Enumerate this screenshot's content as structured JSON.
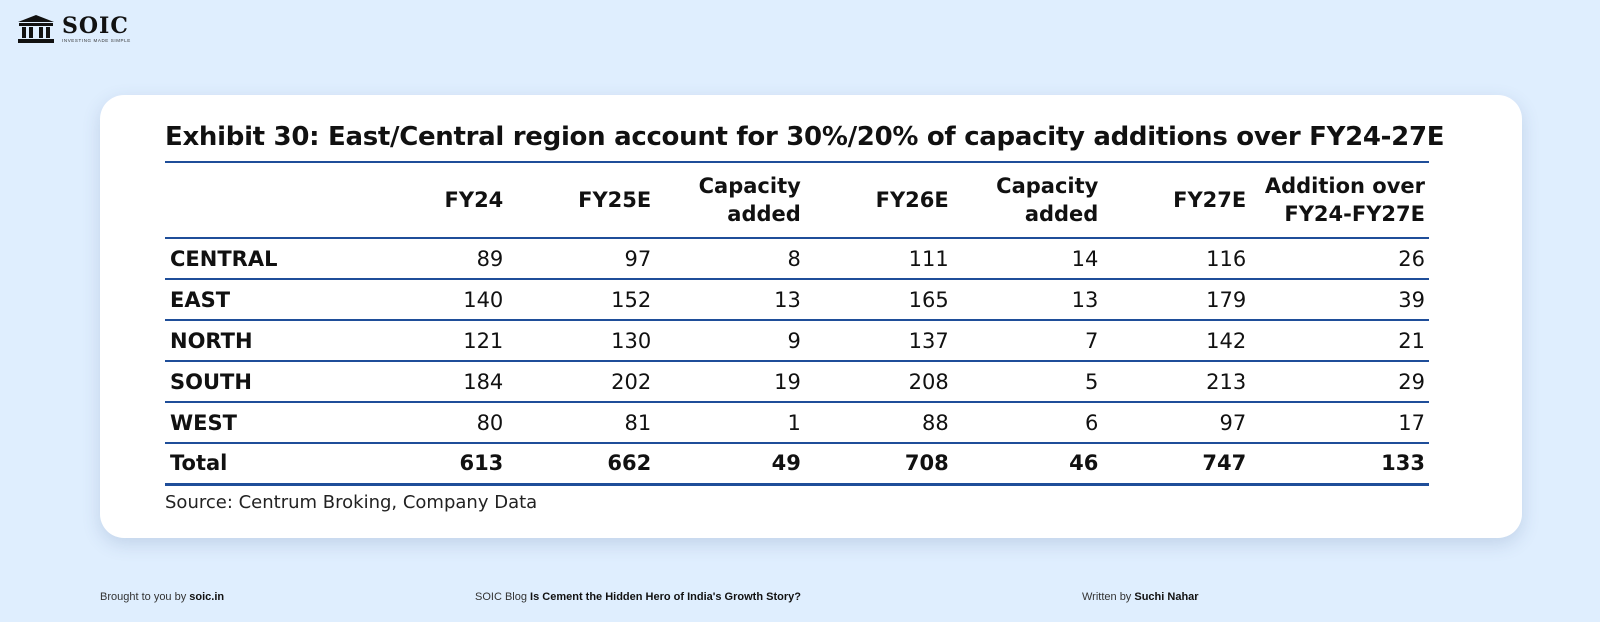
{
  "brand": {
    "name": "SOIC",
    "tagline": "INVESTING MADE SIMPLE"
  },
  "exhibit": {
    "title": "Exhibit 30: East/Central region account for 30%/20%  of capacity additions over FY24-27E",
    "headers": [
      "",
      "FY24",
      "FY25E",
      "Capacity\nadded",
      "FY26E",
      "Capacity\nadded",
      "FY27E",
      "Addition over\nFY24-FY27E"
    ],
    "rows": [
      {
        "region": "CENTRAL",
        "values": [
          "89",
          "97",
          "8",
          "111",
          "14",
          "116",
          "26"
        ]
      },
      {
        "region": "EAST",
        "values": [
          "140",
          "152",
          "13",
          "165",
          "13",
          "179",
          "39"
        ]
      },
      {
        "region": "NORTH",
        "values": [
          "121",
          "130",
          "9",
          "137",
          "7",
          "142",
          "21"
        ]
      },
      {
        "region": "SOUTH",
        "values": [
          "184",
          "202",
          "19",
          "208",
          "5",
          "213",
          "29"
        ]
      },
      {
        "region": "WEST",
        "values": [
          "80",
          "81",
          "1",
          "88",
          "6",
          "97",
          "17"
        ]
      },
      {
        "region": "Total",
        "values": [
          "613",
          "662",
          "49",
          "708",
          "46",
          "747",
          "133"
        ]
      }
    ],
    "source": "Source: Centrum Broking, Company Data"
  },
  "footer": {
    "brought_prefix": "Brought to you by ",
    "brought_link": "soic.in",
    "blog_prefix": "SOIC Blog ",
    "blog_title": "Is Cement the Hidden Hero of India's Growth Story?",
    "written_prefix": "Written by ",
    "author": "Suchi Nahar"
  },
  "colors": {
    "background": "#dfeefe",
    "card": "#ffffff",
    "rule": "#1f4e99"
  }
}
